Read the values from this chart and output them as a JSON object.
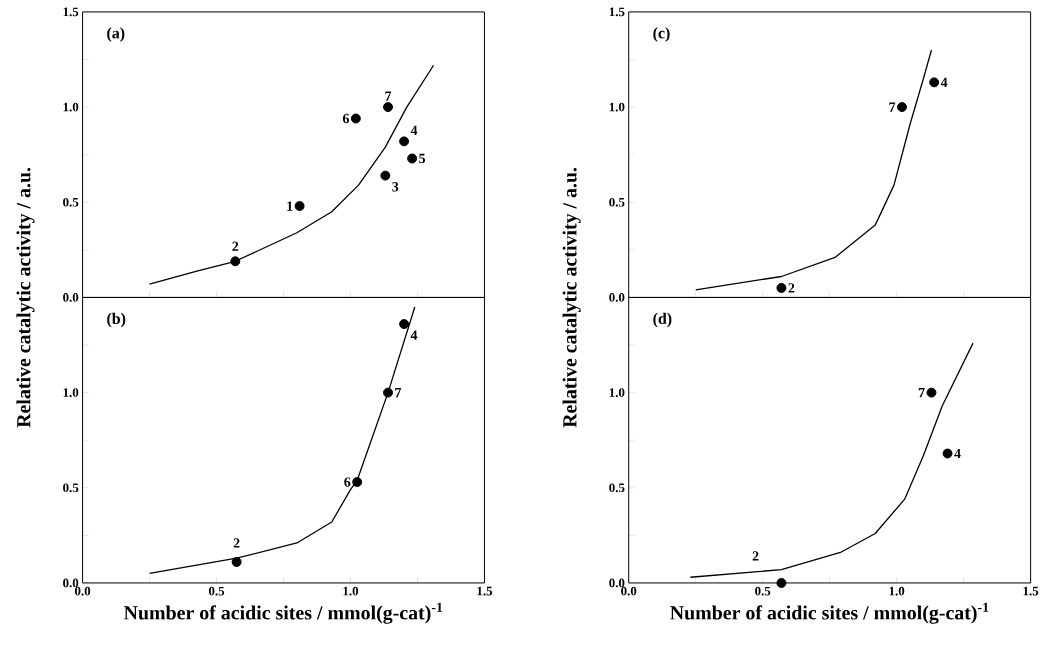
{
  "chart_data": [
    {
      "type": "scatter",
      "title": "(a)",
      "line_style": "solid",
      "tick_labels": "y",
      "xlim": [
        0,
        1.5
      ],
      "ylim": [
        0,
        1.5
      ],
      "xticks": [
        {
          "value": 0,
          "label": null
        },
        {
          "value": 0.25,
          "label": null
        },
        {
          "value": 0.5,
          "label": null
        },
        {
          "value": 0.75,
          "label": null
        },
        {
          "value": 1.0,
          "label": null
        },
        {
          "value": 1.25,
          "label": null
        },
        {
          "value": 1.5,
          "label": null
        }
      ],
      "yticks": [
        {
          "value": 0,
          "label": "0.0"
        },
        {
          "value": 0.25,
          "label": null
        },
        {
          "value": 0.5,
          "label": "0.5"
        },
        {
          "value": 0.75,
          "label": null
        },
        {
          "value": 1.0,
          "label": "1.0"
        },
        {
          "value": 1.25,
          "label": null
        },
        {
          "value": 1.5,
          "label": "1.5"
        }
      ],
      "series": [
        {
          "type": "line",
          "marker": "none",
          "color": "#000000",
          "x": [
            0.25,
            0.43,
            0.57,
            0.8,
            0.93,
            1.03,
            1.13,
            1.21,
            1.31
          ],
          "values": [
            0.07,
            0.14,
            0.19,
            0.34,
            0.45,
            0.59,
            0.79,
            1.0,
            1.22
          ]
        },
        {
          "marker": "circle",
          "color": "#000000",
          "x": [
            0.81,
            0.57,
            1.13,
            1.2,
            1.23,
            1.02,
            1.14
          ],
          "values": [
            0.48,
            0.19,
            0.64,
            0.82,
            0.73,
            0.94,
            1.0
          ]
        }
      ],
      "annotations": [
        {
          "text": "1",
          "x": 0.81,
          "y": 0.48
        },
        {
          "text": "2",
          "x": 0.57,
          "y": 0.19
        },
        {
          "text": "3",
          "x": 1.13,
          "y": 0.64
        },
        {
          "text": "4",
          "x": 1.2,
          "y": 0.82
        },
        {
          "text": "5",
          "x": 1.23,
          "y": 0.73
        },
        {
          "text": "6",
          "x": 1.02,
          "y": 0.94
        },
        {
          "text": "7",
          "x": 1.14,
          "y": 1.0
        }
      ]
    },
    {
      "type": "scatter",
      "title": "(b)",
      "line_style": "solid",
      "xlabel": "Number of acidic sites / mmol(g-cat)$^{-1}$",
      "ylabel": "Relative catalytic activity / a.u.",
      "xlim": [
        0,
        1.5
      ],
      "ylim": [
        0,
        1.5
      ],
      "xticks": [
        {
          "value": 0,
          "label": "0.0"
        },
        {
          "value": 0.25,
          "label": null
        },
        {
          "value": 0.5,
          "label": "0.5"
        },
        {
          "value": 0.75,
          "label": null
        },
        {
          "value": 1.0,
          "label": "1.0"
        },
        {
          "value": 1.25,
          "label": null
        },
        {
          "value": 1.5,
          "label": "1.5"
        }
      ],
      "yticks": [
        {
          "value": 0,
          "label": "0.0"
        },
        {
          "value": 0.25,
          "label": null
        },
        {
          "value": 0.5,
          "label": "0.5"
        },
        {
          "value": 0.75,
          "label": null
        },
        {
          "value": 1.0,
          "label": "1.0"
        },
        {
          "value": 1.25,
          "label": null
        }
      ],
      "series": [
        {
          "type": "line",
          "marker": "none",
          "color": "#000000",
          "x": [
            0.25,
            0.575,
            0.8,
            0.93,
            1.0,
            1.025,
            1.14,
            1.24
          ],
          "values": [
            0.05,
            0.13,
            0.21,
            0.32,
            0.49,
            0.54,
            1.0,
            1.45
          ]
        },
        {
          "marker": "circle",
          "color": "#000000",
          "x": [
            0.575,
            1.2,
            1.025,
            1.14
          ],
          "values": [
            0.11,
            1.36,
            0.53,
            1.0
          ]
        }
      ],
      "annotations": [
        {
          "text": "2",
          "x": 0.575,
          "y": 0.11
        },
        {
          "text": "4",
          "x": 1.2,
          "y": 1.36
        },
        {
          "text": "6",
          "x": 1.025,
          "y": 0.53
        },
        {
          "text": "7",
          "x": 1.14,
          "y": 1.0
        }
      ]
    },
    {
      "type": "scatter",
      "title": "(c)",
      "line_style": "solid",
      "tick_labels": "y",
      "xlim": [
        0,
        1.5
      ],
      "ylim": [
        0,
        1.5
      ],
      "xticks": [
        {
          "value": 0,
          "label": null
        },
        {
          "value": 0.25,
          "label": null
        },
        {
          "value": 0.5,
          "label": null
        },
        {
          "value": 0.75,
          "label": null
        },
        {
          "value": 1.0,
          "label": null
        },
        {
          "value": 1.25,
          "label": null
        },
        {
          "value": 1.5,
          "label": null
        }
      ],
      "yticks": [
        {
          "value": 0,
          "label": "0.0"
        },
        {
          "value": 0.25,
          "label": null
        },
        {
          "value": 0.5,
          "label": "0.5"
        },
        {
          "value": 0.75,
          "label": null
        },
        {
          "value": 1.0,
          "label": "1.0"
        },
        {
          "value": 1.25,
          "label": null
        },
        {
          "value": 1.5,
          "label": "1.5"
        }
      ],
      "series": [
        {
          "type": "line",
          "marker": "none",
          "color": "#000000",
          "x": [
            0.25,
            0.57,
            0.77,
            0.92,
            0.99,
            1.05,
            1.1,
            1.13
          ],
          "values": [
            0.04,
            0.11,
            0.21,
            0.38,
            0.59,
            0.91,
            1.15,
            1.3
          ]
        },
        {
          "marker": "circle",
          "color": "#000000",
          "x": [
            0.57,
            1.14,
            1.02
          ],
          "values": [
            0.05,
            1.13,
            1.0
          ]
        }
      ],
      "annotations": [
        {
          "text": "2",
          "x": 0.57,
          "y": 0.05
        },
        {
          "text": "4",
          "x": 1.14,
          "y": 1.13
        },
        {
          "text": "7",
          "x": 1.02,
          "y": 1.0
        }
      ]
    },
    {
      "type": "scatter",
      "title": "(d)",
      "line_style": "solid",
      "xlabel": "Number of acidic sites / mmol(g-cat)$^{-1}$",
      "ylabel": "Relative catalytic activity / a.u.",
      "xlim": [
        0,
        1.5
      ],
      "ylim": [
        0,
        1.5
      ],
      "xticks": [
        {
          "value": 0,
          "label": "0.0"
        },
        {
          "value": 0.25,
          "label": null
        },
        {
          "value": 0.5,
          "label": "0.5"
        },
        {
          "value": 0.75,
          "label": null
        },
        {
          "value": 1.0,
          "label": "1.0"
        },
        {
          "value": 1.25,
          "label": null
        },
        {
          "value": 1.5,
          "label": "1.5"
        }
      ],
      "yticks": [
        {
          "value": 0,
          "label": "0.0"
        },
        {
          "value": 0.25,
          "label": null
        },
        {
          "value": 0.5,
          "label": "0.5"
        },
        {
          "value": 0.75,
          "label": null
        },
        {
          "value": 1.0,
          "label": "1.0"
        },
        {
          "value": 1.25,
          "label": null
        }
      ],
      "series": [
        {
          "type": "line",
          "marker": "none",
          "color": "#000000",
          "x": [
            0.23,
            0.57,
            0.79,
            0.92,
            1.03,
            1.1,
            1.17,
            1.285
          ],
          "values": [
            0.03,
            0.07,
            0.16,
            0.26,
            0.44,
            0.67,
            0.93,
            1.26
          ]
        },
        {
          "marker": "circle",
          "color": "#000000",
          "x": [
            0.57,
            1.19,
            1.13
          ],
          "values": [
            0.0,
            0.68,
            1.0
          ]
        }
      ],
      "annotations": [
        {
          "text": "2",
          "x": 0.57,
          "y": 0.0
        },
        {
          "text": "4",
          "x": 1.19,
          "y": 0.68
        },
        {
          "text": "7",
          "x": 1.13,
          "y": 1.0
        }
      ]
    }
  ]
}
